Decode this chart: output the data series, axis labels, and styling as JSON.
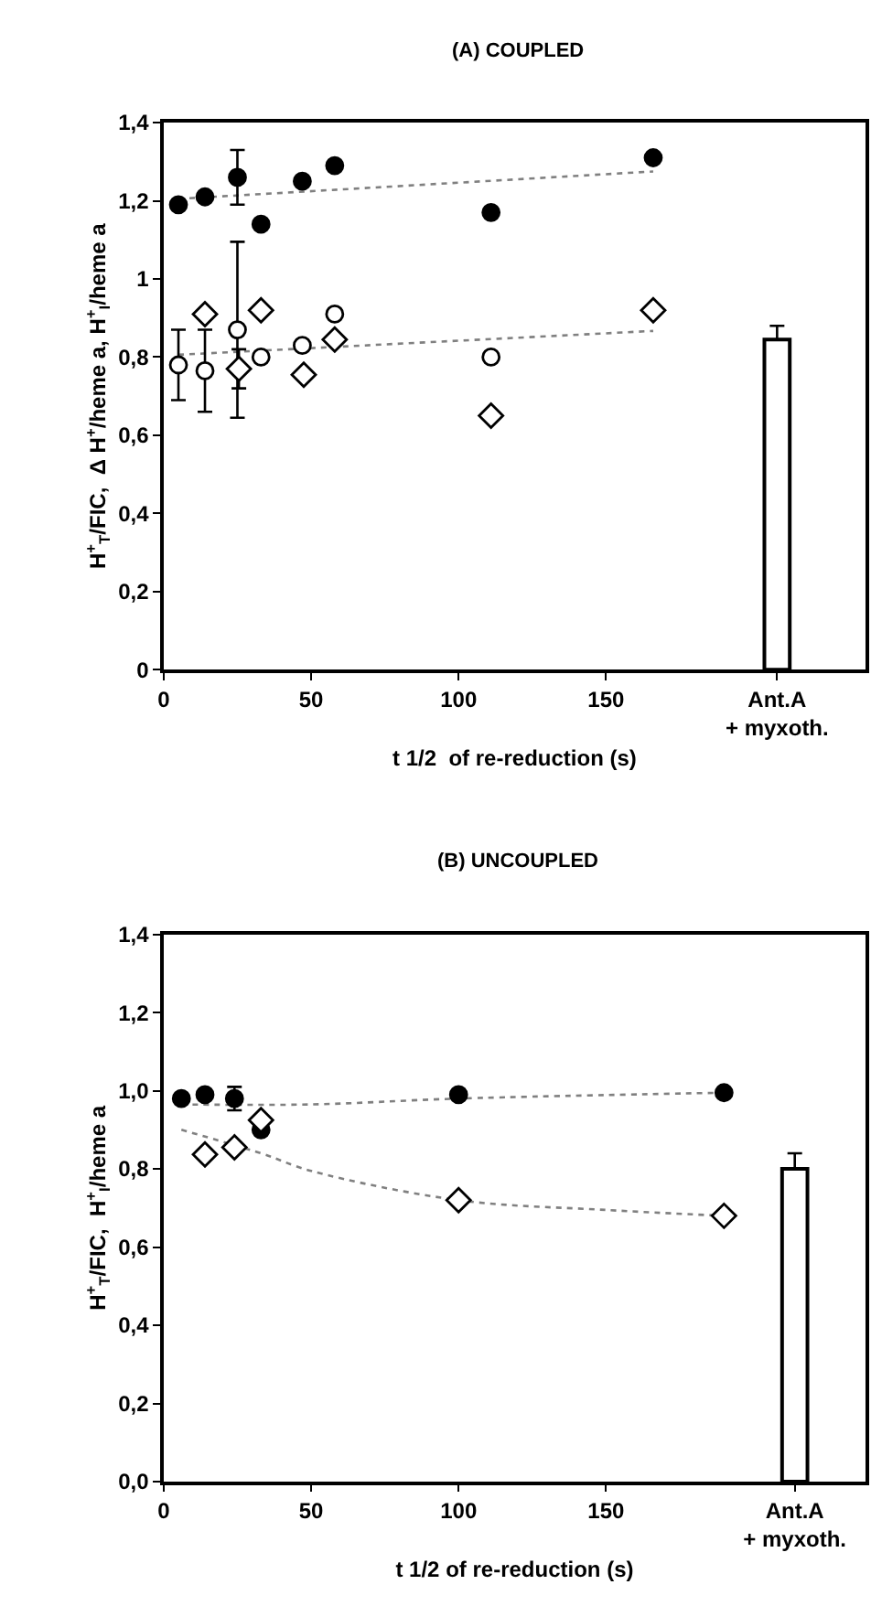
{
  "chart_data": [
    {
      "type": "scatter",
      "title": "(A) COUPLED",
      "xlabel": "t 1/2  of re-reduction (s)",
      "ylabel": "H$^{+}$$_{T}$/FIC,  Δ H$^{+}$/heme a, H$^{+}$$_{I}$/heme a",
      "xlim": [
        0,
        238
      ],
      "ylim": [
        0,
        1.4
      ],
      "xticks": [
        0,
        50,
        100,
        150,
        {
          "value": 208,
          "label": "Ant.A\n+ myxoth."
        }
      ],
      "yticks": [
        0,
        {
          "value": 0.2,
          "label": "0,2"
        },
        {
          "value": 0.4,
          "label": "0,4"
        },
        {
          "value": 0.6,
          "label": "0,6"
        },
        {
          "value": 0.8,
          "label": "0,8"
        },
        1,
        {
          "value": 1.2,
          "label": "1,2"
        },
        {
          "value": 1.4,
          "label": "1,4"
        }
      ],
      "series": [
        {
          "type": "line",
          "color": "#808080",
          "line_style": "dotted",
          "marker": "none",
          "x": [
            5,
            166
          ],
          "values": [
            1.205,
            1.275
          ]
        },
        {
          "type": "line",
          "color": "#808080",
          "line_style": "dotted",
          "marker": "none",
          "x": [
            5,
            166
          ],
          "values": [
            0.806,
            0.867
          ]
        },
        {
          "color": "#000000",
          "marker": "circle",
          "x": [
            5,
            14,
            25,
            33,
            47,
            58,
            111,
            166
          ],
          "values": [
            1.19,
            1.21,
            1.26,
            1.14,
            1.25,
            1.29,
            1.17,
            1.31
          ],
          "errors": [
            null,
            null,
            0.07,
            null,
            null,
            null,
            null,
            null
          ]
        },
        {
          "color": "#ffffff",
          "marker": "circle",
          "x": [
            5,
            14,
            25,
            33,
            47,
            58,
            111
          ],
          "values": [
            0.78,
            0.765,
            0.87,
            0.8,
            0.83,
            0.91,
            0.8
          ],
          "errors": [
            0.09,
            0.105,
            0.225,
            null,
            null,
            null,
            null
          ]
        },
        {
          "color": "#ffffff",
          "marker": "diamond",
          "x": [
            14,
            25.5,
            33,
            47.5,
            58,
            111,
            166
          ],
          "values": [
            0.91,
            0.77,
            0.92,
            0.755,
            0.845,
            0.65,
            0.92
          ],
          "errors": [
            null,
            0.05,
            null,
            null,
            null,
            null,
            null
          ]
        },
        {
          "type": "bar",
          "color": "#ffffff",
          "x": [
            208
          ],
          "values": [
            0.845
          ],
          "errors": [
            [
              0.845,
              0.88
            ]
          ]
        }
      ]
    },
    {
      "type": "scatter",
      "title": "(B) UNCOUPLED",
      "xlabel": "t 1/2 of re-reduction (s)",
      "ylabel": "H$^{+}$$_{T}$/FIC,  H$^{+}$$_{I}$/heme a",
      "xlim": [
        0,
        238
      ],
      "ylim": [
        0,
        1.4
      ],
      "xticks": [
        0,
        50,
        100,
        150,
        {
          "value": 214,
          "label": "Ant.A\n+ myxoth."
        }
      ],
      "yticks": [
        {
          "value": 0,
          "label": "0,0"
        },
        {
          "value": 0.2,
          "label": "0,2"
        },
        {
          "value": 0.4,
          "label": "0,4"
        },
        {
          "value": 0.6,
          "label": "0,6"
        },
        {
          "value": 0.8,
          "label": "0,8"
        },
        {
          "value": 1.0,
          "label": "1,0"
        },
        {
          "value": 1.2,
          "label": "1,2"
        },
        {
          "value": 1.4,
          "label": "1,4"
        }
      ],
      "series": [
        {
          "type": "line",
          "color": "#808080",
          "line_style": "dotted",
          "marker": "none",
          "x": [
            6,
            50,
            100,
            190
          ],
          "values": [
            0.965,
            0.965,
            0.98,
            0.995
          ]
        },
        {
          "type": "line",
          "color": "#808080",
          "line_style": "dotted",
          "marker": "none",
          "x": [
            6,
            33,
            50,
            100,
            150,
            190
          ],
          "values": [
            0.9,
            0.84,
            0.795,
            0.72,
            0.695,
            0.68
          ]
        },
        {
          "color": "#000000",
          "marker": "circle",
          "x": [
            6,
            14,
            24,
            33,
            100,
            190
          ],
          "values": [
            0.98,
            0.99,
            0.98,
            0.9,
            0.99,
            0.995
          ],
          "errors": [
            null,
            null,
            0.03,
            null,
            null,
            null
          ]
        },
        {
          "color": "#ffffff",
          "marker": "diamond",
          "x": [
            14,
            24,
            33,
            100,
            190
          ],
          "values": [
            0.837,
            0.855,
            0.925,
            0.72,
            0.68
          ]
        },
        {
          "type": "bar",
          "color": "#ffffff",
          "x": [
            214
          ],
          "values": [
            0.8
          ],
          "errors": [
            [
              0.8,
              0.84
            ]
          ]
        }
      ]
    }
  ]
}
